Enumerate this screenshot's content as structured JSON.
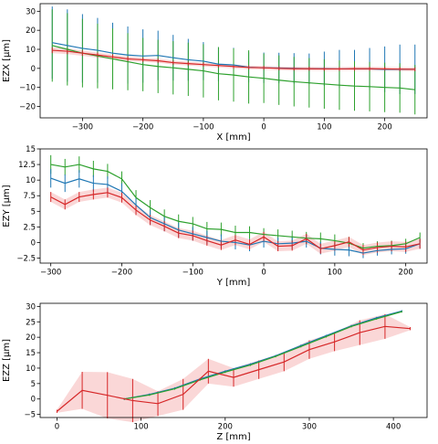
{
  "colors": {
    "blue": "#1f77b4",
    "green": "#2ca02c",
    "red": "#d62728",
    "band": "#f4a6a6"
  },
  "chart_data": [
    {
      "type": "line",
      "xlabel": "X [mm]",
      "ylabel": "EZX [μm]",
      "xlim": [
        -370,
        270
      ],
      "ylim": [
        -26,
        34
      ],
      "xticks": [
        -300,
        -200,
        -100,
        0,
        100,
        200
      ],
      "yticks": [
        -20,
        -10,
        0,
        10,
        20,
        30
      ],
      "series": [
        {
          "color": "blue",
          "x": [
            -350,
            -325,
            -300,
            -275,
            -250,
            -225,
            -200,
            -175,
            -150,
            -125,
            -100,
            -75,
            -50,
            -25,
            0,
            25,
            50,
            75,
            100,
            125,
            150,
            175,
            200,
            225,
            250
          ],
          "y": [
            13.5,
            12,
            10.5,
            9.5,
            8,
            7,
            6.5,
            6.8,
            5.6,
            4.5,
            3.8,
            2.2,
            1.8,
            0.6,
            0.3,
            0.2,
            0,
            -0.2,
            -0.2,
            -0.3,
            -0.3,
            -0.3,
            -0.5,
            -0.5,
            -0.5
          ],
          "err": [
            19,
            19,
            18,
            17,
            16,
            15,
            14,
            13,
            12,
            11,
            10,
            9,
            9,
            8,
            8,
            8,
            8,
            8,
            9,
            10,
            10,
            11,
            12,
            13,
            13
          ]
        },
        {
          "color": "green",
          "x": [
            -350,
            -325,
            -300,
            -275,
            -250,
            -225,
            -200,
            -175,
            -150,
            -125,
            -100,
            -75,
            -50,
            -25,
            0,
            25,
            50,
            75,
            100,
            125,
            150,
            175,
            200,
            225,
            250
          ],
          "y": [
            12,
            10,
            8,
            6.5,
            5,
            3.5,
            2,
            1,
            0.3,
            -0.5,
            -1.3,
            -2.8,
            -3.5,
            -4.5,
            -5.2,
            -6.2,
            -7,
            -7.6,
            -8.2,
            -8.8,
            -9.3,
            -9.6,
            -10,
            -10.3,
            -11.2
          ],
          "err": [
            19,
            19,
            18,
            17,
            16,
            15,
            14,
            14,
            14,
            14,
            14,
            14,
            14,
            14,
            13,
            13,
            13,
            13,
            13,
            13,
            13,
            13,
            13,
            13,
            13
          ]
        },
        {
          "color": "red",
          "band": true,
          "x": [
            -350,
            -325,
            -300,
            -275,
            -250,
            -225,
            -200,
            -175,
            -150,
            -125,
            -100,
            -75,
            -50,
            -25,
            0,
            25,
            50,
            75,
            100,
            125,
            150,
            175,
            200,
            225,
            250
          ],
          "y": [
            9.5,
            9,
            8,
            7,
            6,
            5,
            4.5,
            4,
            3,
            2.5,
            2,
            1.5,
            1,
            0.5,
            0.3,
            0,
            -0.2,
            -0.2,
            -0.3,
            -0.3,
            -0.2,
            -0.2,
            -0.3,
            -0.4,
            -0.5
          ],
          "err": [
            1.5,
            1.5,
            1.4,
            1.3,
            1.3,
            1.2,
            1.1,
            1.1,
            1,
            1,
            1,
            1,
            1,
            1,
            1,
            1,
            1,
            1,
            1,
            1,
            1,
            1,
            1,
            1,
            1
          ]
        }
      ]
    },
    {
      "type": "line",
      "xlabel": "Y [mm]",
      "ylabel": "EZY [μm]",
      "xlim": [
        -315,
        230
      ],
      "ylim": [
        -3.3,
        15
      ],
      "xticks": [
        -300,
        -200,
        -100,
        0,
        100,
        200
      ],
      "yticks": [
        -2.5,
        0.0,
        2.5,
        5.0,
        7.5,
        10.0,
        12.5,
        15.0
      ],
      "series": [
        {
          "color": "green",
          "x": [
            -300,
            -280,
            -260,
            -240,
            -220,
            -200,
            -180,
            -160,
            -140,
            -120,
            -100,
            -80,
            -60,
            -40,
            -20,
            0,
            20,
            40,
            60,
            80,
            100,
            120,
            140,
            160,
            180,
            200,
            220
          ],
          "y": [
            12.5,
            12.1,
            12.5,
            11.8,
            11.4,
            10.2,
            7.2,
            5.6,
            4.2,
            3.4,
            3,
            2.2,
            2.1,
            1.6,
            1.6,
            1.3,
            1.1,
            0.9,
            0.7,
            0.6,
            0.3,
            -0.1,
            -0.9,
            -0.6,
            -0.5,
            -0.2,
            0.8
          ],
          "err": [
            1.5,
            1.3,
            1.3,
            1.3,
            1.2,
            1.2,
            1.2,
            1.2,
            1.1,
            1.1,
            1.1,
            1.1,
            1.1,
            1.1,
            1.0,
            1.0,
            1.0,
            1.0,
            1.0,
            1.0,
            1.0,
            1.0,
            0.8,
            0.8,
            0.8,
            0.8,
            0.8
          ]
        },
        {
          "color": "blue",
          "x": [
            -300,
            -280,
            -260,
            -240,
            -220,
            -200,
            -180,
            -160,
            -140,
            -120,
            -100,
            -80,
            -60,
            -40,
            -20,
            0,
            20,
            40,
            60,
            80,
            100,
            120,
            140,
            160,
            180,
            200,
            220
          ],
          "y": [
            10.3,
            9.5,
            10.2,
            9.5,
            9.3,
            8.2,
            6,
            4,
            3,
            2,
            1.4,
            0.8,
            0.2,
            0,
            -0.4,
            0.2,
            -0.2,
            -0.1,
            0.2,
            -0.9,
            -1.1,
            -1.2,
            -1.7,
            -1.3,
            -1.1,
            -1.0,
            -0.2
          ],
          "err": [
            1.5,
            1.4,
            1.4,
            1.3,
            1.3,
            1.3,
            1.3,
            1.2,
            1.2,
            1.2,
            1.1,
            1.1,
            1.1,
            1.1,
            1.0,
            1.0,
            1.0,
            1.0,
            1.0,
            1.0,
            1.0,
            1.0,
            0.8,
            0.8,
            0.8,
            0.8,
            0.8
          ]
        },
        {
          "color": "red",
          "band": true,
          "x": [
            -300,
            -280,
            -260,
            -240,
            -220,
            -200,
            -180,
            -160,
            -140,
            -120,
            -100,
            -80,
            -60,
            -40,
            -20,
            0,
            20,
            40,
            60,
            80,
            100,
            120,
            140,
            160,
            180,
            200,
            220
          ],
          "y": [
            7.3,
            6.1,
            7.3,
            7.7,
            8,
            7.2,
            5.2,
            3.6,
            2.6,
            1.5,
            1.1,
            0.3,
            -0.4,
            0.4,
            -0.3,
            0.9,
            -0.6,
            -0.5,
            0.6,
            -1.0,
            -0.5,
            0.1,
            -1.2,
            -0.8,
            -0.6,
            -0.7,
            -0.2
          ],
          "err": [
            0.8,
            0.8,
            0.8,
            0.8,
            0.8,
            0.8,
            0.8,
            0.8,
            0.8,
            0.8,
            0.8,
            0.8,
            0.8,
            0.8,
            0.8,
            0.8,
            0.8,
            0.8,
            0.8,
            0.8,
            0.8,
            0.8,
            0.8,
            0.8,
            0.8,
            0.8,
            0.8
          ]
        }
      ]
    },
    {
      "type": "line",
      "xlabel": "Z [mm]",
      "ylabel": "EZZ [μm]",
      "xlim": [
        -20,
        440
      ],
      "ylim": [
        -6,
        31
      ],
      "xticks": [
        0,
        100,
        200,
        300,
        400
      ],
      "yticks": [
        -5,
        0,
        5,
        10,
        15,
        20,
        25,
        30
      ],
      "series": [
        {
          "color": "blue",
          "x": [
            80,
            110,
            140,
            170,
            200,
            230,
            260,
            290,
            320,
            350,
            380,
            410
          ],
          "y": [
            0,
            1.5,
            3.5,
            6.5,
            9,
            11.3,
            14,
            17.3,
            20.5,
            23.7,
            26.3,
            28.5
          ],
          "err": [
            0.3,
            0.3,
            0.3,
            0.3,
            0.3,
            0.3,
            0.3,
            0.3,
            0.3,
            0.3,
            0.3,
            0.3
          ]
        },
        {
          "color": "green",
          "x": [
            80,
            110,
            140,
            170,
            200,
            230,
            260,
            290,
            320,
            350,
            380,
            410
          ],
          "y": [
            0,
            1.3,
            3.3,
            6.2,
            8.7,
            11,
            13.8,
            17,
            20.2,
            23.5,
            26,
            28.3
          ],
          "err": [
            0.3,
            0.3,
            0.3,
            0.3,
            0.3,
            0.3,
            0.3,
            0.3,
            0.3,
            0.3,
            0.3,
            0.3
          ]
        },
        {
          "color": "red",
          "band": true,
          "x": [
            0,
            30,
            60,
            90,
            120,
            150,
            180,
            210,
            240,
            270,
            300,
            330,
            360,
            390,
            420
          ],
          "y": [
            -4,
            2.8,
            1.2,
            -0.5,
            -1.5,
            1.5,
            9,
            7,
            9.5,
            12,
            16,
            18.5,
            21.5,
            23.5,
            22.8
          ],
          "err": [
            0.5,
            6,
            7.5,
            7,
            4,
            5,
            4,
            3,
            3,
            3,
            3,
            3,
            4,
            4,
            0.5
          ]
        }
      ]
    }
  ]
}
